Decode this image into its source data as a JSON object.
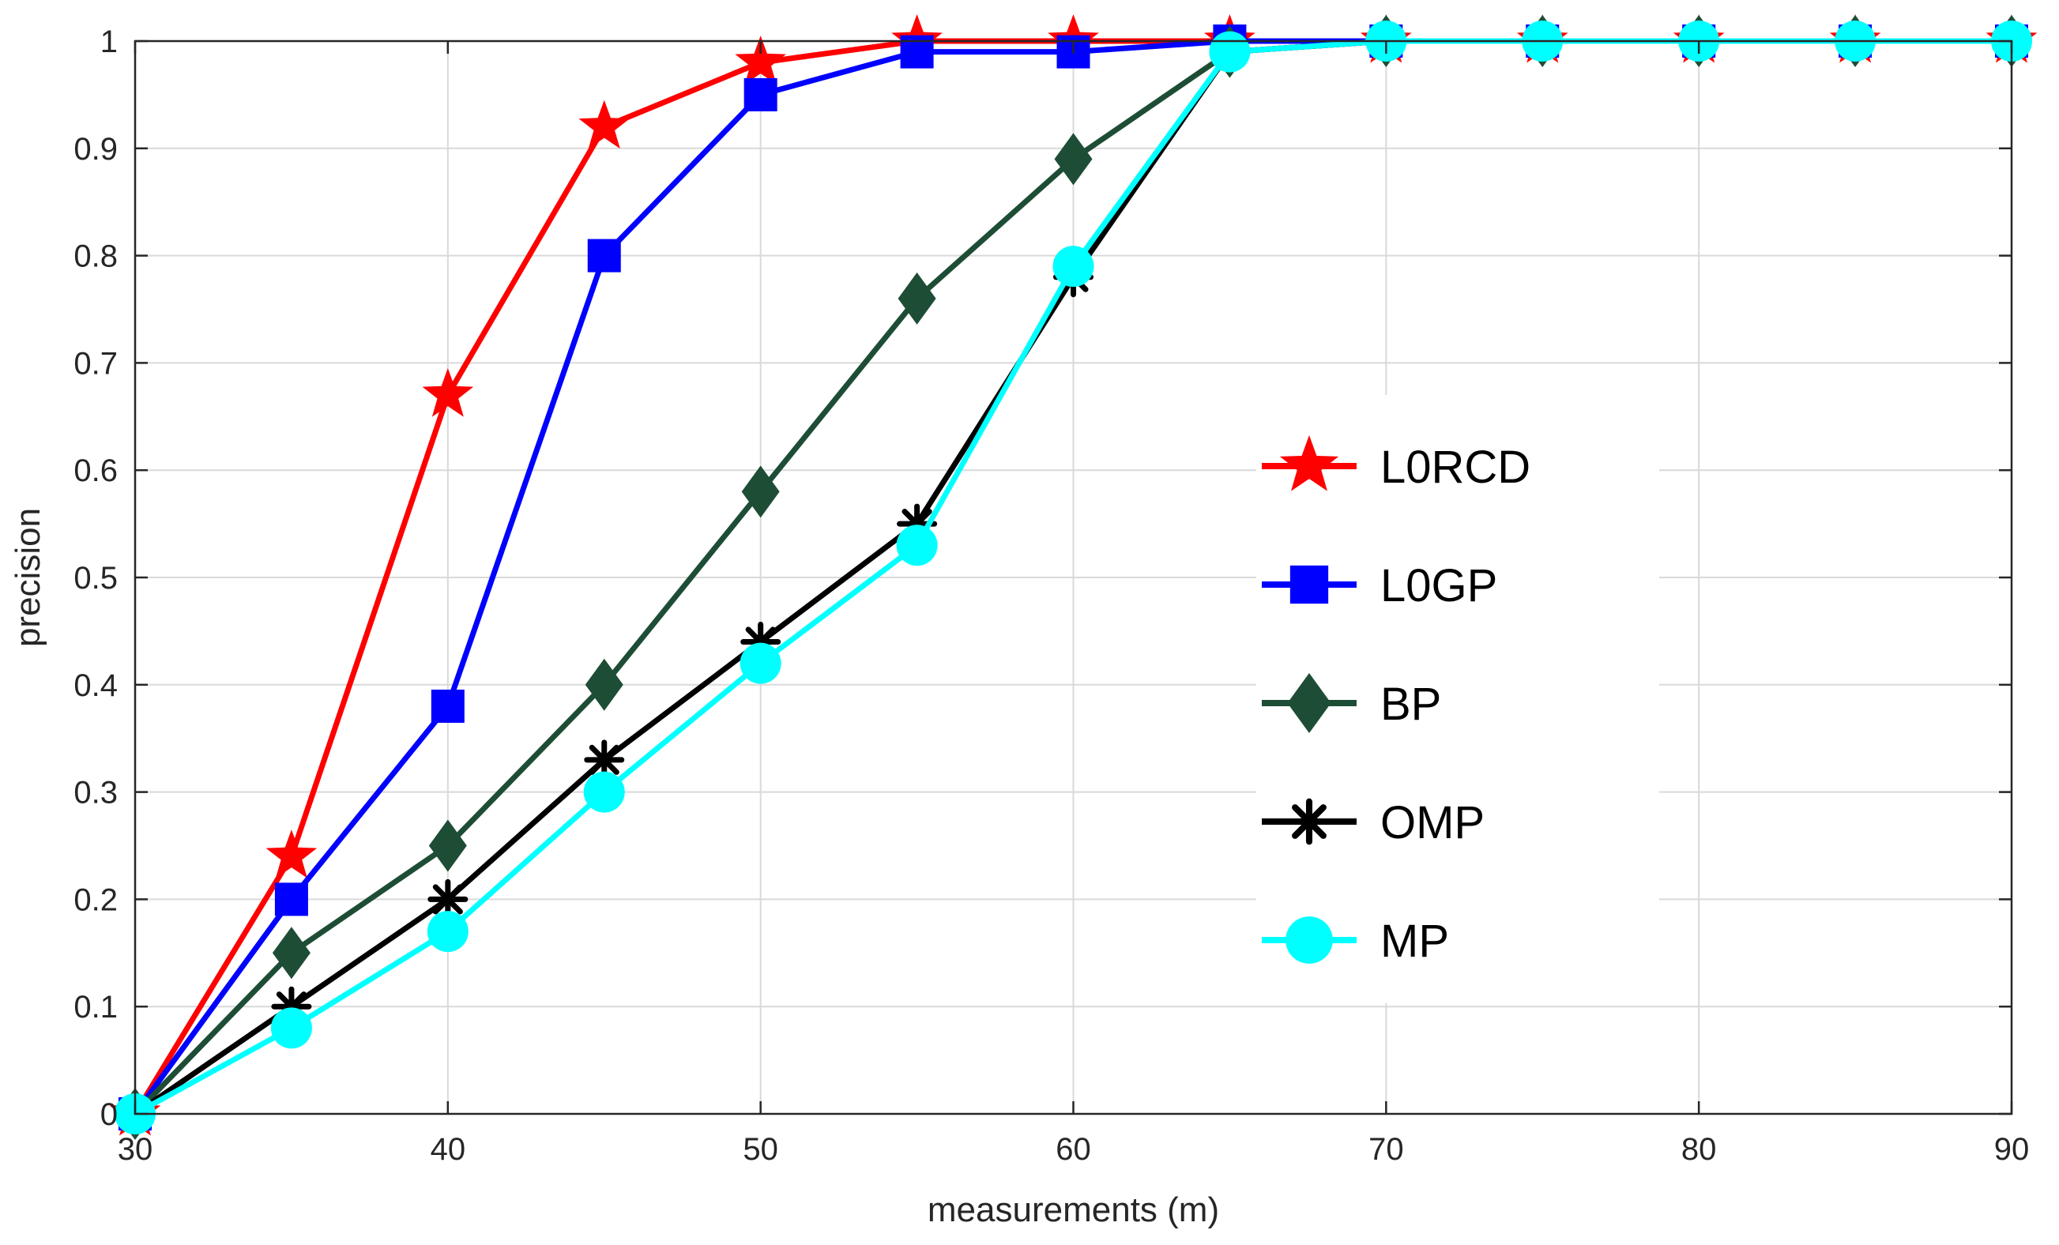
{
  "chart_data": {
    "type": "line",
    "title": "",
    "xlabel": "measurements (m)",
    "ylabel": "precision",
    "xlim": [
      30,
      90
    ],
    "ylim": [
      0,
      1
    ],
    "xticks": [
      30,
      40,
      50,
      60,
      70,
      80,
      90
    ],
    "yticks": [
      0,
      0.1,
      0.2,
      0.3,
      0.4,
      0.5,
      0.6,
      0.7,
      0.8,
      0.9,
      1
    ],
    "ytick_labels": [
      "0",
      "0.1",
      "0.2",
      "0.3",
      "0.4",
      "0.5",
      "0.6",
      "0.7",
      "0.8",
      "0.9",
      "1"
    ],
    "grid": true,
    "legend_position": "center-right",
    "x": [
      30,
      35,
      40,
      45,
      50,
      55,
      60,
      65,
      70,
      75,
      80,
      85,
      90
    ],
    "series": [
      {
        "name": "L0RCD",
        "color": "#ff0000",
        "marker": "star",
        "values": [
          0,
          0.24,
          0.67,
          0.92,
          0.98,
          1.0,
          1.0,
          1.0,
          1.0,
          1.0,
          1.0,
          1.0,
          1.0
        ]
      },
      {
        "name": "L0GP",
        "color": "#0000ff",
        "marker": "square",
        "values": [
          0,
          0.2,
          0.38,
          0.8,
          0.95,
          0.99,
          0.99,
          1.0,
          1.0,
          1.0,
          1.0,
          1.0,
          1.0
        ]
      },
      {
        "name": "BP",
        "color": "#1e4d36",
        "marker": "diamond",
        "values": [
          0,
          0.15,
          0.25,
          0.4,
          0.58,
          0.76,
          0.89,
          0.99,
          1.0,
          1.0,
          1.0,
          1.0,
          1.0
        ]
      },
      {
        "name": "OMP",
        "color": "#000000",
        "marker": "asterisk",
        "values": [
          0,
          0.1,
          0.2,
          0.33,
          0.44,
          0.55,
          0.78,
          0.99,
          1.0,
          1.0,
          1.0,
          1.0,
          1.0
        ]
      },
      {
        "name": "MP",
        "color": "#00ffff",
        "marker": "circle",
        "values": [
          0,
          0.08,
          0.17,
          0.3,
          0.42,
          0.53,
          0.79,
          0.99,
          1.0,
          1.0,
          1.0,
          1.0,
          1.0
        ]
      }
    ]
  }
}
